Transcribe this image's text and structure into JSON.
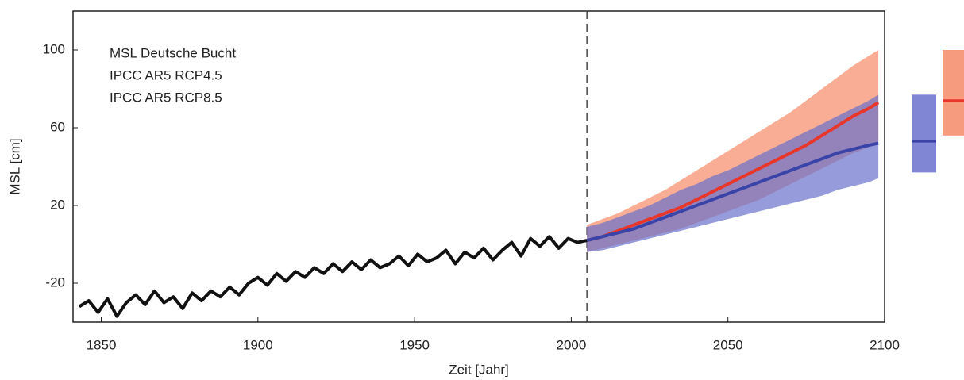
{
  "chart_data": {
    "type": "line",
    "xlabel": "Zeit [Jahr]",
    "ylabel": "MSL [cm]",
    "xlim": [
      1841,
      2100
    ],
    "xticks": [
      1850,
      1900,
      1950,
      2000,
      2050,
      2100
    ],
    "ylim": [
      -40,
      120
    ],
    "yticks": [
      -20,
      20,
      60,
      100
    ],
    "divider_x": 2005,
    "observed": {
      "name": "MSL Deutsche Bucht",
      "color": "#111111",
      "x": [
        1843,
        1846,
        1849,
        1852,
        1855,
        1858,
        1861,
        1864,
        1867,
        1870,
        1873,
        1876,
        1879,
        1882,
        1885,
        1888,
        1891,
        1894,
        1897,
        1900,
        1903,
        1906,
        1909,
        1912,
        1915,
        1918,
        1921,
        1924,
        1927,
        1930,
        1933,
        1936,
        1939,
        1942,
        1945,
        1948,
        1951,
        1954,
        1957,
        1960,
        1963,
        1966,
        1969,
        1972,
        1975,
        1978,
        1981,
        1984,
        1987,
        1990,
        1993,
        1996,
        1999,
        2002,
        2005
      ],
      "values": [
        -32,
        -29,
        -35,
        -28,
        -37,
        -30,
        -26,
        -31,
        -24,
        -30,
        -27,
        -33,
        -25,
        -29,
        -24,
        -27,
        -22,
        -26,
        -20,
        -17,
        -21,
        -15,
        -19,
        -14,
        -17,
        -12,
        -15,
        -10,
        -14,
        -9,
        -13,
        -8,
        -12,
        -10,
        -6,
        -11,
        -5,
        -9,
        -7,
        -3,
        -10,
        -4,
        -7,
        -2,
        -8,
        -3,
        1,
        -6,
        3,
        -1,
        4,
        -2,
        3,
        1,
        2
      ]
    },
    "projection_x": [
      2005,
      2010,
      2015,
      2020,
      2025,
      2030,
      2035,
      2040,
      2045,
      2050,
      2055,
      2060,
      2065,
      2070,
      2075,
      2080,
      2085,
      2090,
      2095,
      2098
    ],
    "series": [
      {
        "name": "IPCC AR5 RCP8.5",
        "color": "#e8362b",
        "band_color": "#f58a66",
        "values": [
          2,
          4,
          7,
          10,
          13,
          16,
          19,
          23,
          27,
          31,
          35,
          39,
          43,
          47,
          51,
          56,
          61,
          66,
          70,
          73
        ],
        "low": [
          -4,
          -2,
          0,
          2,
          4,
          6,
          8,
          11,
          14,
          17,
          20,
          23,
          27,
          31,
          35,
          39,
          43,
          47,
          50,
          52
        ],
        "high": [
          10,
          13,
          16,
          20,
          24,
          28,
          33,
          38,
          43,
          48,
          53,
          58,
          63,
          68,
          74,
          80,
          86,
          92,
          97,
          100
        ],
        "end_range": [
          56,
          74,
          100
        ]
      },
      {
        "name": "IPCC AR5 RCP4.5",
        "color": "#3a44a8",
        "band_color": "#6a70cc",
        "values": [
          2,
          4,
          6,
          8,
          11,
          14,
          17,
          20,
          23,
          26,
          29,
          32,
          35,
          38,
          41,
          44,
          47,
          49,
          51,
          52
        ],
        "low": [
          -4,
          -3,
          -1,
          1,
          3,
          5,
          7,
          9,
          11,
          13,
          15,
          17,
          19,
          21,
          23,
          25,
          28,
          30,
          32,
          34
        ],
        "high": [
          9,
          11,
          14,
          17,
          20,
          24,
          28,
          31,
          35,
          38,
          42,
          46,
          50,
          54,
          58,
          62,
          66,
          70,
          74,
          77
        ],
        "end_range": [
          37,
          53,
          77
        ]
      }
    ]
  }
}
